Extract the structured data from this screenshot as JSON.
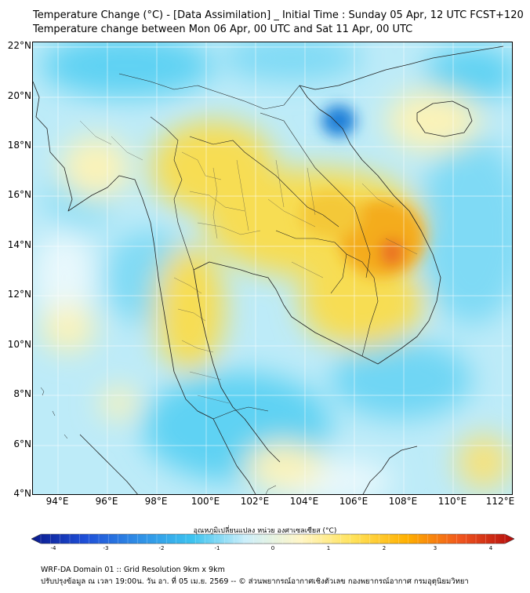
{
  "title_line1": "Temperature Change (°C) - [Data Assimilation] _ Initial Time : Sunday 05 Apr, 12 UTC FCST+120",
  "title_line2": "Temperature change between Mon 06 Apr, 00 UTC and Sat 11 Apr, 00 UTC",
  "lat_labels": [
    "22°N",
    "20°N",
    "18°N",
    "16°N",
    "14°N",
    "12°N",
    "10°N",
    "8°N",
    "6°N",
    "4°N"
  ],
  "lon_labels": [
    "94°E",
    "96°E",
    "98°E",
    "100°E",
    "102°E",
    "104°E",
    "106°E",
    "108°E",
    "110°E",
    "112°E"
  ],
  "colorbar": {
    "label": "อุณหภูมิเปลี่ยนแปลง หน่วย องศาเซลเซียส (°C)",
    "min": -4,
    "max": 4,
    "tick_labels": [
      "-4",
      "-3",
      "-2",
      "-1",
      "0",
      "1",
      "2",
      "3",
      "4"
    ],
    "colors": [
      "#0a1a8c",
      "#1f4fd8",
      "#2f8fe6",
      "#3cc3ef",
      "#cdeffa",
      "#fff6c8",
      "#ffe25a",
      "#ffb000",
      "#f0551e",
      "#b40c0c"
    ]
  },
  "field_colors": {
    "cold_strong": "#1a7fd8",
    "cold": "#5fd2f3",
    "cool": "#bdebf8",
    "neutral": "#f2fafc",
    "mild": "#fbf3b8",
    "warm": "#f7dd52",
    "warm_strong": "#f4ac1e",
    "hot": "#ea6d21"
  },
  "footer_line1": "WRF-DA Domain 01 :: Grid Resolution 9km x 9km",
  "footer_line2": "ปรับปรุงข้อมูล ณ เวลา 19:00น. วัน อา. ที่ 05 เม.ย. 2569 -- © ส่วนพยากรณ์อากาศเชิงตัวเลข กองพยากรณ์อากาศ กรมอุตุนิยมวิทยา"
}
